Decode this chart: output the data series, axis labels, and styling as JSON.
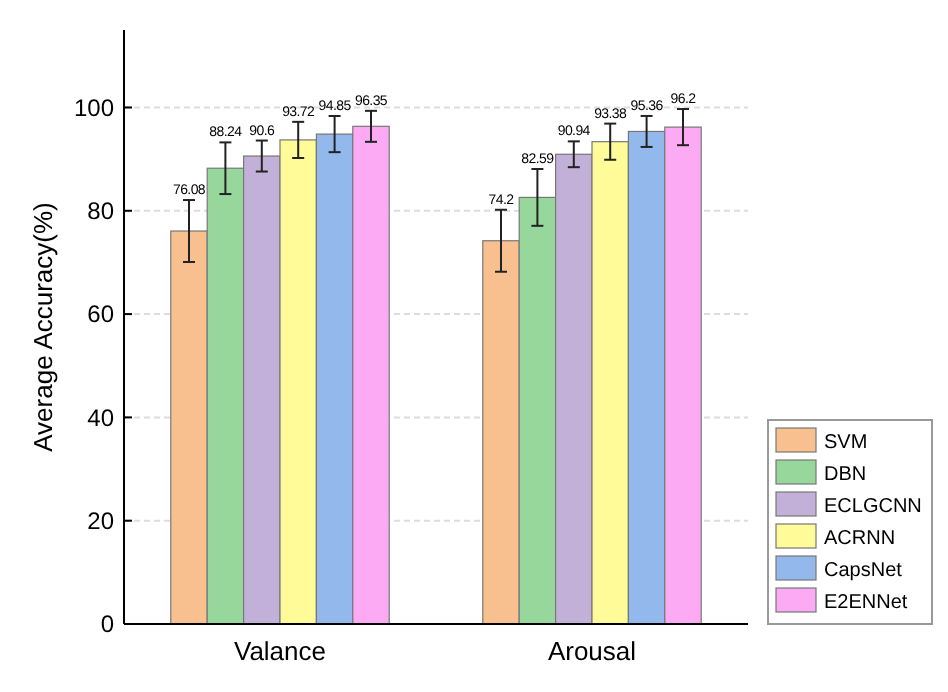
{
  "chart_data": {
    "type": "bar",
    "ylabel": "Average Accuracy(%)",
    "categories": [
      "Valance",
      "Arousal"
    ],
    "series": [
      {
        "name": "SVM",
        "color": "#f9c08f",
        "values": [
          76.08,
          74.2
        ],
        "errors": [
          6,
          6
        ]
      },
      {
        "name": "DBN",
        "color": "#98d79b",
        "values": [
          88.24,
          82.59
        ],
        "errors": [
          5,
          5.5
        ]
      },
      {
        "name": "ECLGCNN",
        "color": "#c2b0d8",
        "values": [
          90.6,
          90.94
        ],
        "errors": [
          3,
          2.5
        ]
      },
      {
        "name": "ACRNN",
        "color": "#fefb98",
        "values": [
          93.72,
          93.38
        ],
        "errors": [
          3.5,
          3.5
        ]
      },
      {
        "name": "CapsNet",
        "color": "#93b8ec",
        "values": [
          94.85,
          95.36
        ],
        "errors": [
          3.5,
          3
        ]
      },
      {
        "name": "E2ENNet",
        "color": "#fdaaf4",
        "values": [
          96.35,
          96.2
        ],
        "errors": [
          3,
          3.5
        ]
      }
    ],
    "data_labels": true,
    "ylim": [
      0,
      115
    ],
    "yticks": [
      0,
      20,
      40,
      60,
      80,
      100
    ],
    "grid": "y",
    "legend": "right"
  }
}
